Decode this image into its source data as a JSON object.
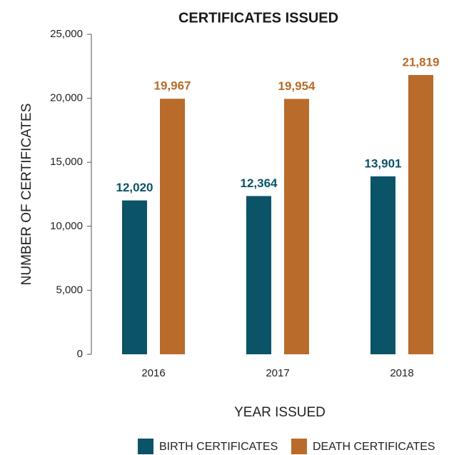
{
  "chart_data": {
    "type": "bar",
    "title": "CERTIFICATES ISSUED",
    "x_label": "YEAR ISSUED",
    "y_label": "NUMBER OF CERTIFICATES",
    "categories": [
      "2016",
      "2017",
      "2018"
    ],
    "series": [
      {
        "name": "BIRTH CERTIFICATES",
        "color": "#0b5367",
        "values": [
          12020,
          12364,
          13901
        ],
        "value_labels": [
          "12,020",
          "12,364",
          "13,901"
        ]
      },
      {
        "name": "DEATH CERTIFICATES",
        "color": "#b86b2a",
        "values": [
          19967,
          19954,
          21819
        ],
        "value_labels": [
          "19,967",
          "19,954",
          "21,819"
        ]
      }
    ],
    "ylim": [
      0,
      25000
    ],
    "yticks": [
      0,
      {
        "value": 5000,
        "label": "5,000"
      },
      {
        "value": 10000,
        "label": "10,000"
      },
      {
        "value": 15000,
        "label": "15,000"
      },
      {
        "value": 20000,
        "label": "20,000"
      },
      {
        "value": 25000,
        "label": "25,000"
      }
    ],
    "grid": false,
    "legend": "bottom"
  }
}
